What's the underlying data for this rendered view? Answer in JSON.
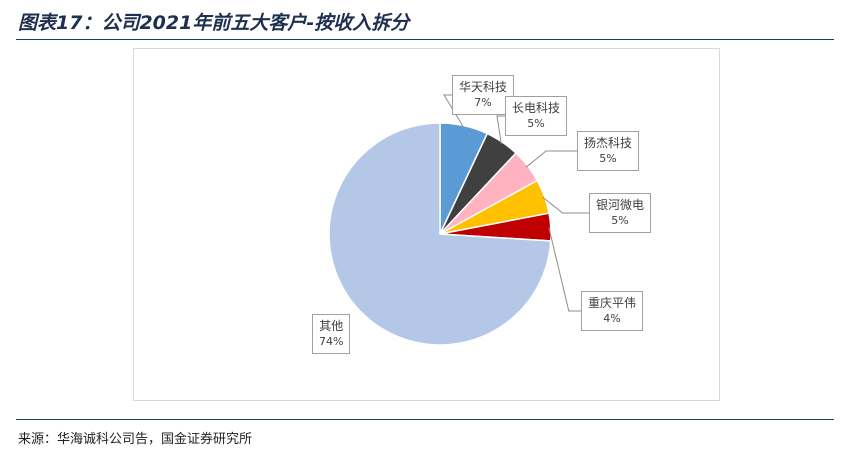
{
  "figure": {
    "title": "图表17：公司2021年前五大客户-按收入拆分",
    "source": "来源：华海诚科公司告，国金证券研究所"
  },
  "colors": {
    "rule": "#1f3f5f"
  },
  "chart_data": {
    "type": "pie",
    "title": "",
    "slices": [
      {
        "label": "华天科技",
        "value": 7,
        "pct_label": "7%",
        "color": "#5b9bd5"
      },
      {
        "label": "长电科技",
        "value": 5,
        "pct_label": "5%",
        "color": "#404040"
      },
      {
        "label": "扬杰科技",
        "value": 5,
        "pct_label": "5%",
        "color": "#ffb3c1"
      },
      {
        "label": "银河微电",
        "value": 5,
        "pct_label": "5%",
        "color": "#ffc000"
      },
      {
        "label": "重庆平伟",
        "value": 4,
        "pct_label": "4%",
        "color": "#c00000"
      },
      {
        "label": "其他",
        "value": 74,
        "pct_label": "74%",
        "color": "#b4c7e7"
      }
    ],
    "start_angle": "12 o'clock",
    "direction": "clockwise",
    "labels": "callouts with leader lines",
    "legend": "none"
  }
}
